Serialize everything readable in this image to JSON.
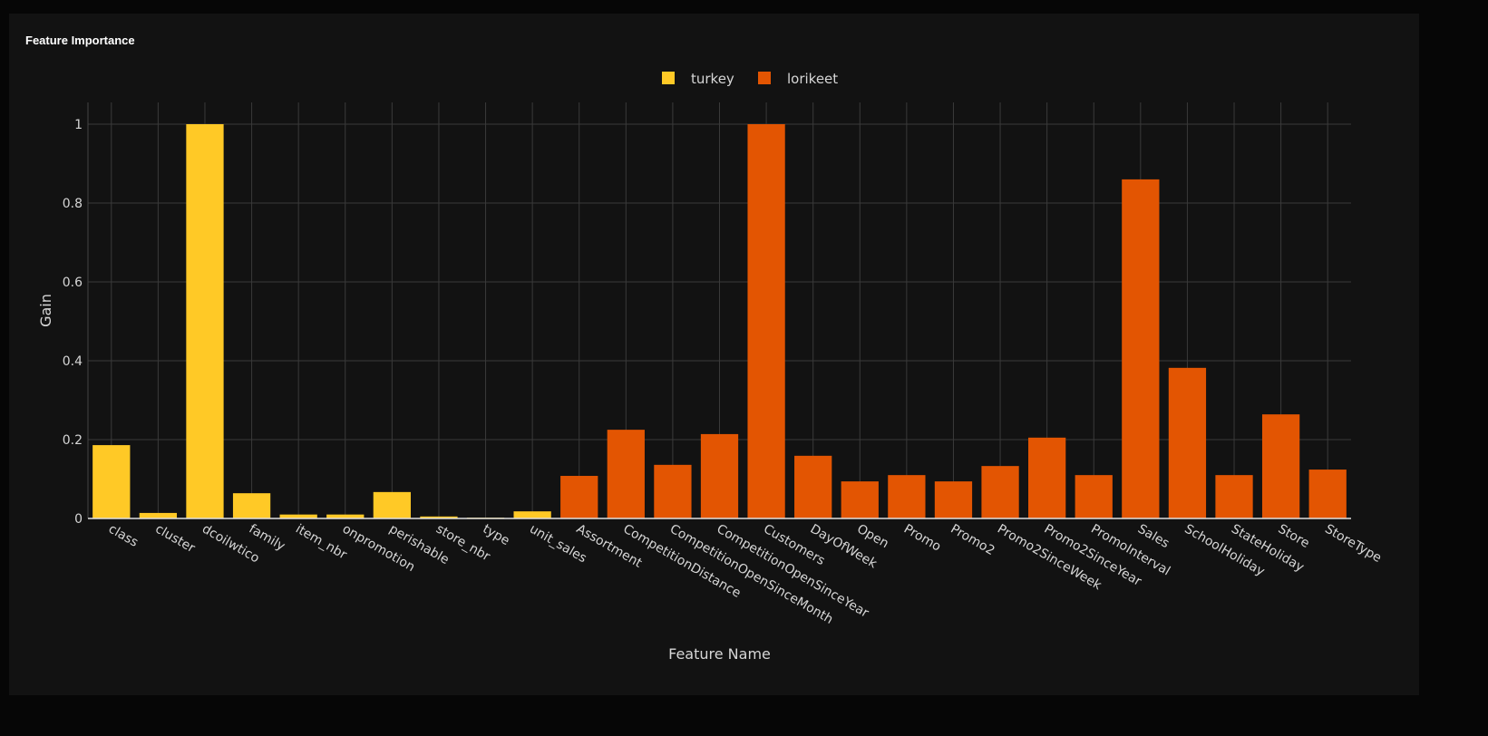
{
  "chart_data": {
    "type": "bar",
    "title": "Feature Importance",
    "xlabel": "Feature Name",
    "ylabel": "Gain",
    "ylim": [
      0,
      1.05
    ],
    "yticks": [
      0,
      0.2,
      0.4,
      0.6,
      0.8,
      1
    ],
    "grid": true,
    "legend_position": "top-center",
    "series": [
      {
        "name": "turkey",
        "color": "#ffc926",
        "categories": [
          "class",
          "cluster",
          "dcoilwtico",
          "family",
          "item_nbr",
          "onpromotion",
          "perishable",
          "store_nbr",
          "type",
          "unit_sales"
        ],
        "values": [
          0.186,
          0.014,
          1.0,
          0.064,
          0.01,
          0.01,
          0.067,
          0.005,
          0.002,
          0.018
        ]
      },
      {
        "name": "lorikeet",
        "color": "#e35502",
        "categories": [
          "Assortment",
          "CompetitionDistance",
          "CompetitionOpenSinceMonth",
          "CompetitionOpenSinceYear",
          "Customers",
          "DayOfWeek",
          "Open",
          "Promo",
          "Promo2",
          "Promo2SinceWeek",
          "Promo2SinceYear",
          "PromoInterval",
          "Sales",
          "SchoolHoliday",
          "StateHoliday",
          "Store",
          "StoreType"
        ],
        "values": [
          0.108,
          0.225,
          0.136,
          0.214,
          1.0,
          0.159,
          0.094,
          0.11,
          0.094,
          0.133,
          0.205,
          0.11,
          0.86,
          0.382,
          0.11,
          0.264,
          0.124
        ]
      }
    ]
  }
}
